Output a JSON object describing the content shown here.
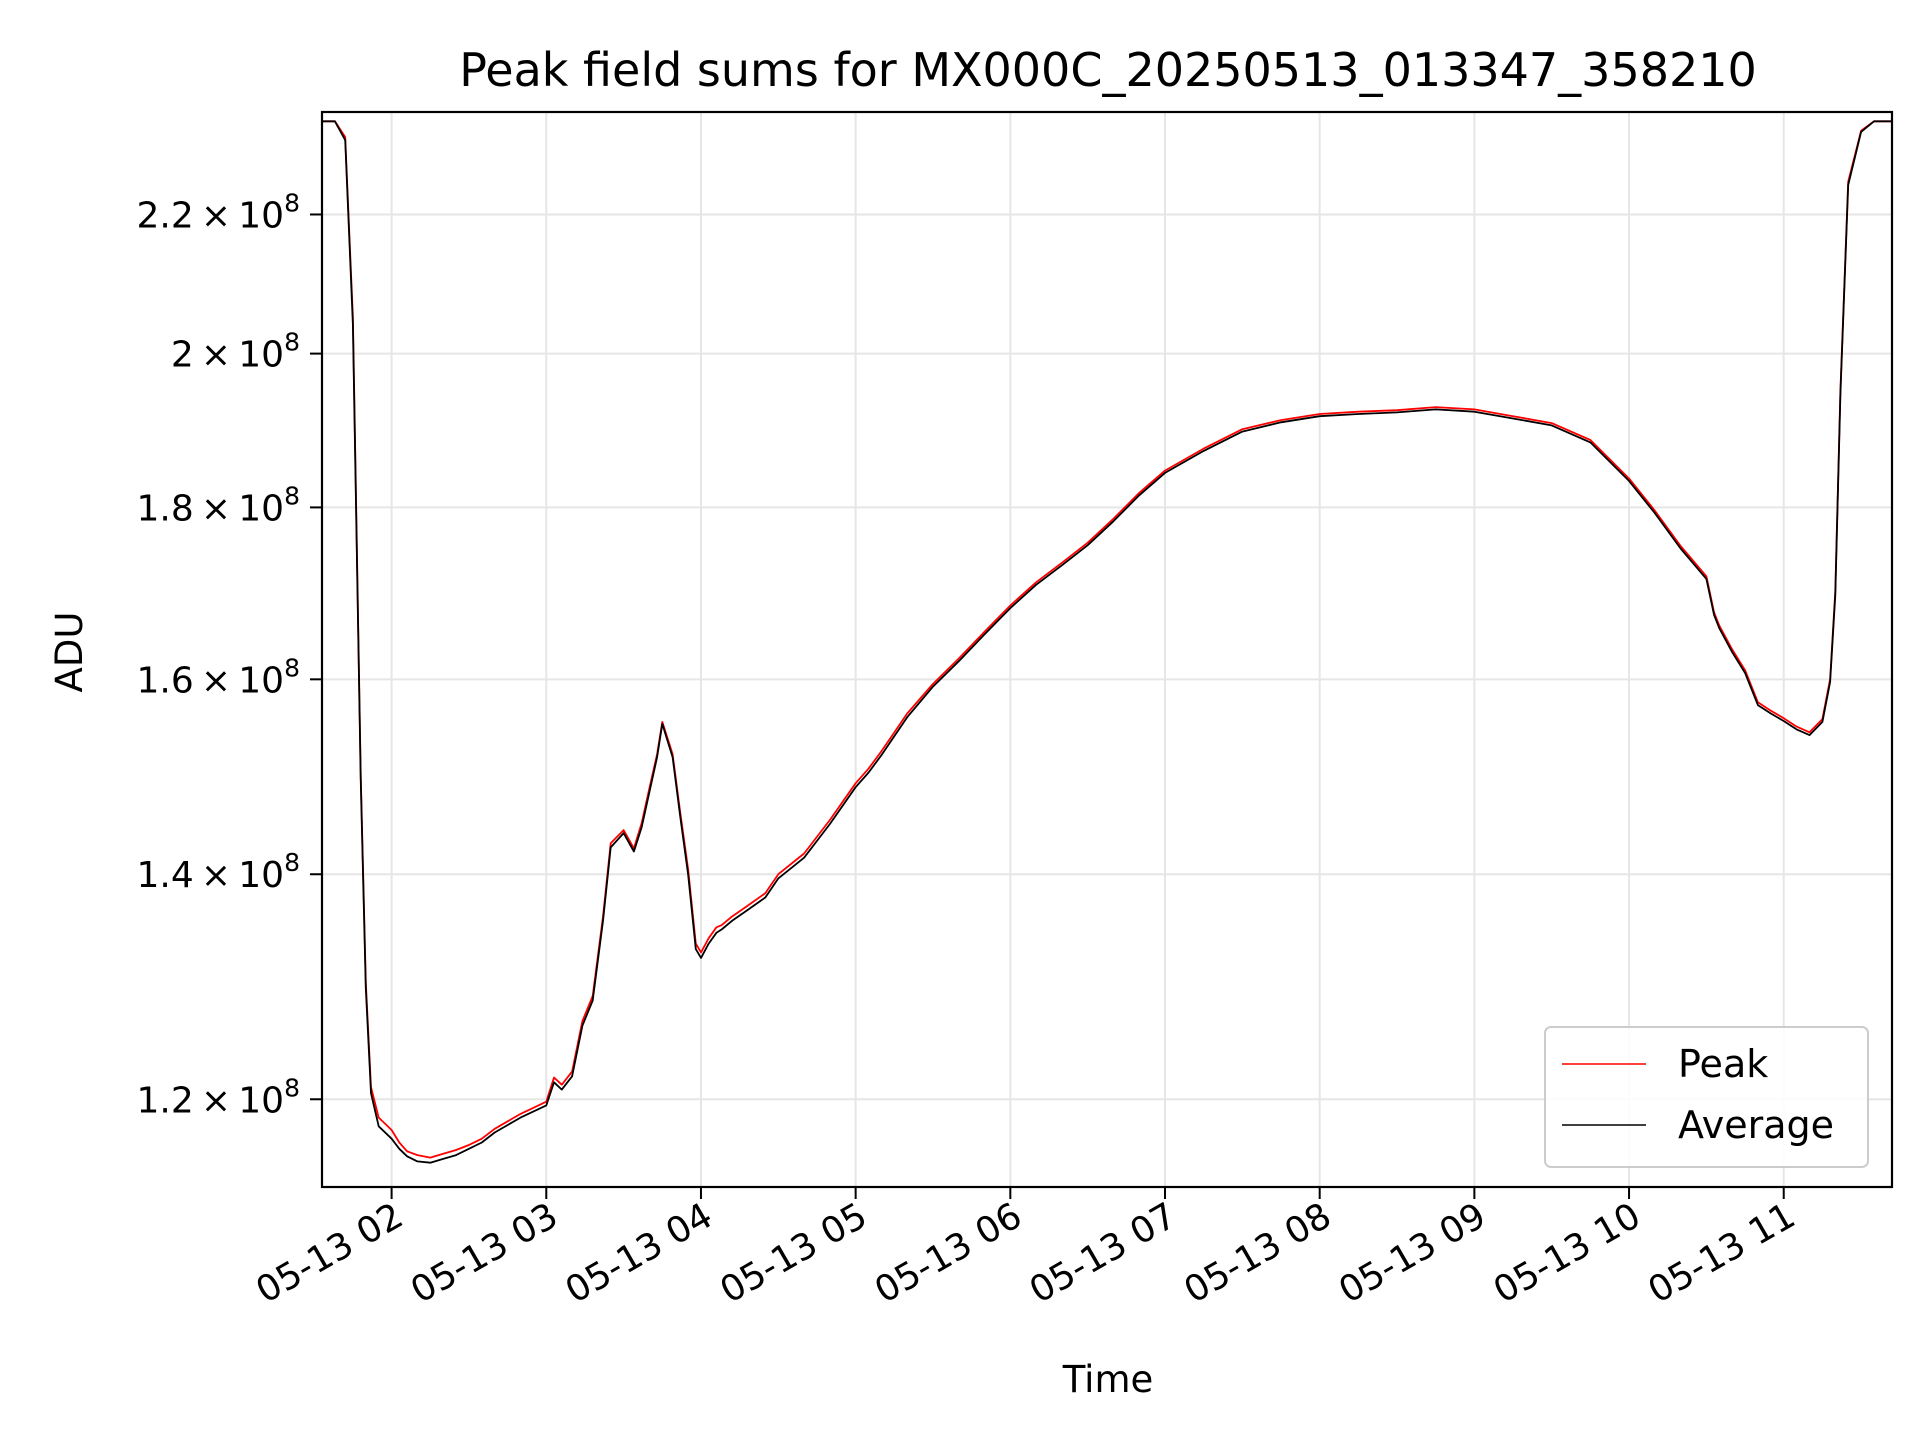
{
  "chart_data": {
    "type": "line",
    "title": "Peak field sums for MX000C_20250513_013347_358210",
    "xlabel": "Time",
    "ylabel": "ADU",
    "yscale": "log",
    "grid": true,
    "legend_placement": "lower-right",
    "xlim": [
      "05-13 01:33",
      "05-13 11:42"
    ],
    "ylim": [
      113000000,
      236000000
    ],
    "x_ticks": [
      {
        "value": "05-13 02:00",
        "label": "05-13 02"
      },
      {
        "value": "05-13 03:00",
        "label": "05-13 03"
      },
      {
        "value": "05-13 04:00",
        "label": "05-13 04"
      },
      {
        "value": "05-13 05:00",
        "label": "05-13 05"
      },
      {
        "value": "05-13 06:00",
        "label": "05-13 06"
      },
      {
        "value": "05-13 07:00",
        "label": "05-13 07"
      },
      {
        "value": "05-13 08:00",
        "label": "05-13 08"
      },
      {
        "value": "05-13 09:00",
        "label": "05-13 09"
      },
      {
        "value": "05-13 10:00",
        "label": "05-13 10"
      },
      {
        "value": "05-13 11:00",
        "label": "05-13 11"
      }
    ],
    "y_ticks": [
      {
        "value": 120000000,
        "mant": "1.2",
        "exp": "8"
      },
      {
        "value": 140000000,
        "mant": "1.4",
        "exp": "8"
      },
      {
        "value": 160000000,
        "mant": "1.6",
        "exp": "8"
      },
      {
        "value": 180000000,
        "mant": "1.8",
        "exp": "8"
      },
      {
        "value": 200000000,
        "mant": "2",
        "exp": "8"
      },
      {
        "value": 220000000,
        "mant": "2.2",
        "exp": "8"
      }
    ],
    "series": [
      {
        "name": "Peak",
        "color": "#ff0000",
        "x": [
          "05-13 01:33",
          "05-13 01:38",
          "05-13 01:42",
          "05-13 01:45",
          "05-13 01:46",
          "05-13 01:48",
          "05-13 01:50",
          "05-13 01:52",
          "05-13 01:55",
          "05-13 02:00",
          "05-13 02:03",
          "05-13 02:06",
          "05-13 02:10",
          "05-13 02:15",
          "05-13 02:20",
          "05-13 02:25",
          "05-13 02:30",
          "05-13 02:35",
          "05-13 02:40",
          "05-13 02:50",
          "05-13 03:00",
          "05-13 03:03",
          "05-13 03:06",
          "05-13 03:10",
          "05-13 03:14",
          "05-13 03:18",
          "05-13 03:22",
          "05-13 03:25",
          "05-13 03:30",
          "05-13 03:34",
          "05-13 03:37",
          "05-13 03:40",
          "05-13 03:43",
          "05-13 03:45",
          "05-13 03:49",
          "05-13 03:52",
          "05-13 03:55",
          "05-13 03:58",
          "05-13 04:00",
          "05-13 04:03",
          "05-13 04:06",
          "05-13 04:08",
          "05-13 04:12",
          "05-13 04:18",
          "05-13 04:25",
          "05-13 04:30",
          "05-13 04:40",
          "05-13 04:50",
          "05-13 05:00",
          "05-13 05:05",
          "05-13 05:10",
          "05-13 05:20",
          "05-13 05:30",
          "05-13 05:40",
          "05-13 05:50",
          "05-13 06:00",
          "05-13 06:10",
          "05-13 06:20",
          "05-13 06:30",
          "05-13 06:40",
          "05-13 06:50",
          "05-13 07:00",
          "05-13 07:15",
          "05-13 07:30",
          "05-13 07:45",
          "05-13 08:00",
          "05-13 08:15",
          "05-13 08:30",
          "05-13 08:45",
          "05-13 09:00",
          "05-13 09:15",
          "05-13 09:30",
          "05-13 09:45",
          "05-13 10:00",
          "05-13 10:10",
          "05-13 10:20",
          "05-13 10:30",
          "05-13 10:33",
          "05-13 10:35",
          "05-13 10:40",
          "05-13 10:45",
          "05-13 10:50",
          "05-13 10:55",
          "05-13 11:00",
          "05-13 11:05",
          "05-13 11:10",
          "05-13 11:15",
          "05-13 11:18",
          "05-13 11:20",
          "05-13 11:22",
          "05-13 11:25",
          "05-13 11:30",
          "05-13 11:35",
          "05-13 11:42"
        ],
        "values": [
          234500000,
          234500000,
          232000000,
          205000000,
          185000000,
          150000000,
          130000000,
          121000000,
          118500000,
          117500000,
          116500000,
          115800000,
          115500000,
          115300000,
          115600000,
          115900000,
          116300000,
          116800000,
          117600000,
          118800000,
          119800000,
          121800000,
          121200000,
          122300000,
          126600000,
          128800000,
          136000000,
          143000000,
          144300000,
          142500000,
          145000000,
          148500000,
          152000000,
          155400000,
          152000000,
          146000000,
          140500000,
          133500000,
          132700000,
          134000000,
          135000000,
          135200000,
          136000000,
          137000000,
          138200000,
          140000000,
          142000000,
          145300000,
          149000000,
          150500000,
          152300000,
          156300000,
          159500000,
          162300000,
          165300000,
          168300000,
          171000000,
          173300000,
          175700000,
          178600000,
          181800000,
          184600000,
          187400000,
          189900000,
          191100000,
          191900000,
          192200000,
          192400000,
          192800000,
          192500000,
          191600000,
          190700000,
          188500000,
          183600000,
          179600000,
          175300000,
          171700000,
          167500000,
          166000000,
          163300000,
          161000000,
          157500000,
          156600000,
          155800000,
          154900000,
          154300000,
          155700000,
          160000000,
          170000000,
          195000000,
          225000000,
          233000000,
          234500000,
          234500000
        ]
      },
      {
        "name": "Average",
        "color": "#000000",
        "x": [
          "05-13 01:33",
          "05-13 01:38",
          "05-13 01:42",
          "05-13 01:45",
          "05-13 01:46",
          "05-13 01:48",
          "05-13 01:50",
          "05-13 01:52",
          "05-13 01:55",
          "05-13 02:00",
          "05-13 02:03",
          "05-13 02:06",
          "05-13 02:10",
          "05-13 02:15",
          "05-13 02:20",
          "05-13 02:25",
          "05-13 02:30",
          "05-13 02:35",
          "05-13 02:40",
          "05-13 02:50",
          "05-13 03:00",
          "05-13 03:03",
          "05-13 03:06",
          "05-13 03:10",
          "05-13 03:14",
          "05-13 03:18",
          "05-13 03:22",
          "05-13 03:25",
          "05-13 03:30",
          "05-13 03:34",
          "05-13 03:37",
          "05-13 03:40",
          "05-13 03:43",
          "05-13 03:45",
          "05-13 03:49",
          "05-13 03:52",
          "05-13 03:55",
          "05-13 03:58",
          "05-13 04:00",
          "05-13 04:03",
          "05-13 04:06",
          "05-13 04:08",
          "05-13 04:12",
          "05-13 04:18",
          "05-13 04:25",
          "05-13 04:30",
          "05-13 04:40",
          "05-13 04:50",
          "05-13 05:00",
          "05-13 05:05",
          "05-13 05:10",
          "05-13 05:20",
          "05-13 05:30",
          "05-13 05:40",
          "05-13 05:50",
          "05-13 06:00",
          "05-13 06:10",
          "05-13 06:20",
          "05-13 06:30",
          "05-13 06:40",
          "05-13 06:50",
          "05-13 07:00",
          "05-13 07:15",
          "05-13 07:30",
          "05-13 07:45",
          "05-13 08:00",
          "05-13 08:15",
          "05-13 08:30",
          "05-13 08:45",
          "05-13 09:00",
          "05-13 09:15",
          "05-13 09:30",
          "05-13 09:45",
          "05-13 10:00",
          "05-13 10:10",
          "05-13 10:20",
          "05-13 10:30",
          "05-13 10:33",
          "05-13 10:35",
          "05-13 10:40",
          "05-13 10:45",
          "05-13 10:50",
          "05-13 10:55",
          "05-13 11:00",
          "05-13 11:05",
          "05-13 11:10",
          "05-13 11:15",
          "05-13 11:18",
          "05-13 11:20",
          "05-13 11:22",
          "05-13 11:25",
          "05-13 11:30",
          "05-13 11:35",
          "05-13 11:42"
        ],
        "values": [
          234500000,
          234500000,
          231500000,
          204000000,
          184000000,
          149500000,
          129500000,
          120500000,
          117800000,
          116800000,
          116000000,
          115400000,
          115000000,
          114900000,
          115200000,
          115500000,
          116000000,
          116500000,
          117300000,
          118500000,
          119500000,
          121400000,
          120800000,
          121900000,
          126200000,
          128400000,
          135600000,
          142600000,
          144000000,
          142200000,
          144600000,
          148100000,
          151700000,
          155200000,
          151700000,
          145600000,
          140000000,
          133000000,
          132200000,
          133500000,
          134500000,
          134800000,
          135600000,
          136600000,
          137800000,
          139600000,
          141600000,
          144900000,
          148600000,
          150100000,
          151900000,
          155900000,
          159200000,
          162000000,
          165000000,
          168000000,
          170700000,
          173000000,
          175400000,
          178300000,
          181500000,
          184300000,
          187100000,
          189600000,
          190800000,
          191600000,
          191900000,
          192100000,
          192500000,
          192200000,
          191300000,
          190400000,
          188200000,
          183300000,
          179300000,
          175000000,
          171400000,
          167200000,
          165700000,
          163000000,
          160700000,
          157200000,
          156300000,
          155500000,
          154600000,
          154000000,
          155400000,
          159700000,
          169500000,
          194500000,
          224500000,
          232800000,
          234500000,
          234500000
        ]
      }
    ]
  }
}
